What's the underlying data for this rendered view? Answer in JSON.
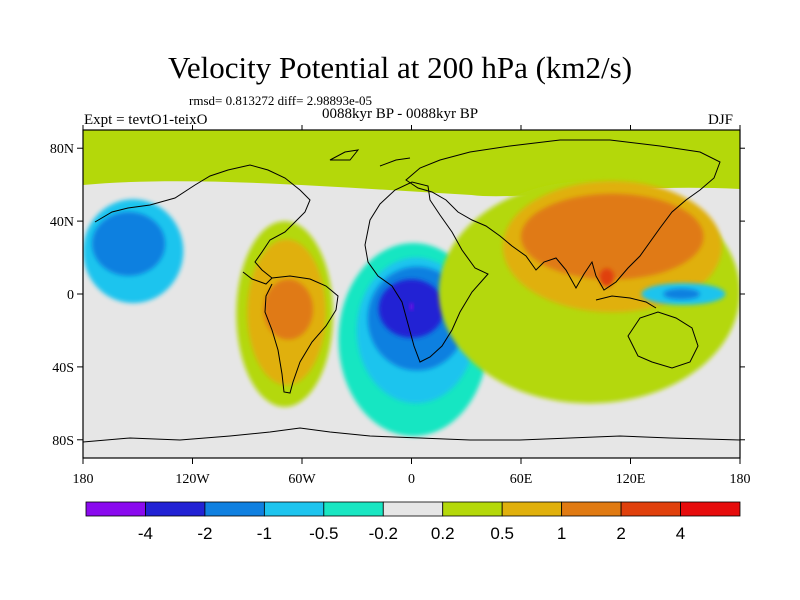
{
  "title": "Velocity Potential at 200 hPa (km2/s)",
  "stats_text": "rmsd= 0.813272 diff= 2.98893e-05",
  "left_label": "Expt = tevtO1-teixO",
  "center_label": "0088kyr BP - 0088kyr BP",
  "right_label": "DJF",
  "map": {
    "projection": "cylindrical-equidistant",
    "lon_range": [
      -180,
      180
    ],
    "lat_range": [
      -90,
      90
    ],
    "lon_ticks": [
      {
        "lon": -180,
        "label": "180"
      },
      {
        "lon": -120,
        "label": "120W"
      },
      {
        "lon": -60,
        "label": "60W"
      },
      {
        "lon": 0,
        "label": "0"
      },
      {
        "lon": 60,
        "label": "60E"
      },
      {
        "lon": 120,
        "label": "120E"
      },
      {
        "lon": 180,
        "label": "180"
      }
    ],
    "lat_ticks": [
      {
        "lat": 80,
        "label": "80N"
      },
      {
        "lat": 40,
        "label": "40N"
      },
      {
        "lat": 0,
        "label": "0"
      },
      {
        "lat": -40,
        "label": "40S"
      },
      {
        "lat": -80,
        "label": "80S"
      }
    ],
    "background_color": "#e6e6e6"
  },
  "colorbar": {
    "colors": [
      "#8a0aee",
      "#2222d4",
      "#1080e0",
      "#1ec4ee",
      "#19e6c2",
      "#e6e6e6",
      "#b4d80a",
      "#e0b00c",
      "#e07a12",
      "#e0400c",
      "#e60c0c"
    ],
    "labels": [
      "-4",
      "-2",
      "-1",
      "-0.5",
      "-0.2",
      "0.2",
      "0.5",
      "1",
      "2",
      "4"
    ]
  },
  "regions": [
    {
      "name": "arctic-band",
      "color": "#b4d80a",
      "lon": [
        -180,
        180
      ],
      "lat": [
        62,
        90
      ]
    },
    {
      "name": "east-pacific-negative",
      "color": "#1ec4ee",
      "level": "-0.5",
      "lon": [
        -180,
        -125
      ],
      "lat": [
        -5,
        52
      ]
    },
    {
      "name": "east-pacific-negative-core",
      "color": "#1080e0",
      "level": "-1",
      "lon": [
        -175,
        -135
      ],
      "lat": [
        10,
        45
      ]
    },
    {
      "name": "south-america-positive",
      "color": "#b4d80a",
      "level": "0.5",
      "lon": [
        -96,
        -43
      ],
      "lat": [
        -62,
        40
      ]
    },
    {
      "name": "south-america-positive-mid",
      "color": "#e0b00c",
      "level": "1",
      "lon": [
        -90,
        -47
      ],
      "lat": [
        -50,
        30
      ]
    },
    {
      "name": "south-america-positive-core",
      "color": "#e07a12",
      "level": "2",
      "lon": [
        -81,
        -54
      ],
      "lat": [
        -25,
        8
      ]
    },
    {
      "name": "atlantic-africa-negative",
      "color": "#19e6c2",
      "level": "-0.2",
      "lon": [
        -40,
        42
      ],
      "lat": [
        -78,
        28
      ]
    },
    {
      "name": "atlantic-africa-negative-mid",
      "color": "#1ec4ee",
      "level": "-0.5",
      "lon": [
        -30,
        35
      ],
      "lat": [
        -60,
        20
      ]
    },
    {
      "name": "atlantic-africa-negative-strong",
      "color": "#1080e0",
      "level": "-1",
      "lon": [
        -24,
        30
      ],
      "lat": [
        -42,
        15
      ]
    },
    {
      "name": "atlantic-africa-negative-core",
      "color": "#2222d4",
      "level": "-2",
      "lon": [
        -18,
        18
      ],
      "lat": [
        -24,
        8
      ]
    },
    {
      "name": "atlantic-africa-negative-peak",
      "color": "#8a0aee",
      "level": "-4",
      "lon": [
        -1,
        1
      ],
      "lat": [
        -9,
        -5
      ]
    },
    {
      "name": "asia-positive",
      "color": "#b4d80a",
      "level": "0.5",
      "lon": [
        15,
        180
      ],
      "lat": [
        -60,
        62
      ]
    },
    {
      "name": "asia-positive-mid",
      "color": "#e0b00c",
      "level": "1",
      "lon": [
        50,
        170
      ],
      "lat": [
        -10,
        62
      ]
    },
    {
      "name": "asia-positive-core",
      "color": "#e07a12",
      "level": "2",
      "lon": [
        60,
        160
      ],
      "lat": [
        8,
        55
      ]
    },
    {
      "name": "southeast-asia-peak",
      "color": "#e0400c",
      "level": "4",
      "lon": [
        103,
        111
      ],
      "lat": [
        4,
        14
      ]
    },
    {
      "name": "west-pacific-negative",
      "color": "#1ec4ee",
      "level": "-0.5",
      "lon": [
        126,
        172
      ],
      "lat": [
        -6,
        6
      ]
    },
    {
      "name": "west-pacific-negative-core",
      "color": "#1080e0",
      "level": "-1",
      "lon": [
        138,
        158
      ],
      "lat": [
        -3,
        3
      ]
    }
  ]
}
